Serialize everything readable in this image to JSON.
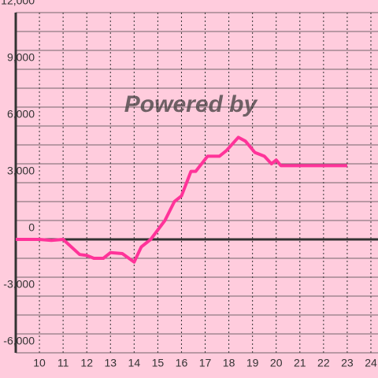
{
  "chart_data": {
    "type": "line",
    "watermark": "Powered by",
    "x": [
      9,
      10,
      10.5,
      11,
      11.7,
      12,
      12.3,
      12.7,
      13,
      13.5,
      14,
      14.3,
      14.7,
      15,
      15.3,
      15.7,
      16,
      16.4,
      16.6,
      17.1,
      17.6,
      17.9,
      18.4,
      18.7,
      19.1,
      19.5,
      19.8,
      20,
      20.2,
      23
    ],
    "series": [
      {
        "color": "#ff3399",
        "values": [
          0,
          0,
          -50,
          0,
          -800,
          -850,
          -1000,
          -1000,
          -700,
          -750,
          -1200,
          -400,
          0,
          500,
          1000,
          2000,
          2300,
          3600,
          3600,
          4400,
          4400,
          4700,
          5400,
          5200,
          4600,
          4400,
          4000,
          4200,
          3900,
          3900
        ]
      }
    ],
    "xlim": [
      9,
      24.3
    ],
    "xticks": [
      10,
      11,
      12,
      13,
      14,
      15,
      16,
      17,
      18,
      19,
      20,
      21,
      22,
      23,
      24
    ],
    "ylim": [
      -6000,
      12000
    ],
    "yticks": [
      {
        "value": -6000,
        "label": "-6,000"
      },
      {
        "value": -3000,
        "label": "-3,000"
      },
      0,
      {
        "value": 3000,
        "label": "3,000"
      },
      {
        "value": 6000,
        "label": "6,000"
      },
      {
        "value": 9000,
        "label": "9,000"
      },
      {
        "value": 12000,
        "label": "12,000"
      }
    ],
    "ygrid": [
      -5000,
      -4000,
      -2000,
      -1000,
      1000,
      2000,
      4000,
      5000,
      7000,
      8000,
      10000,
      11000
    ],
    "grid": true
  }
}
